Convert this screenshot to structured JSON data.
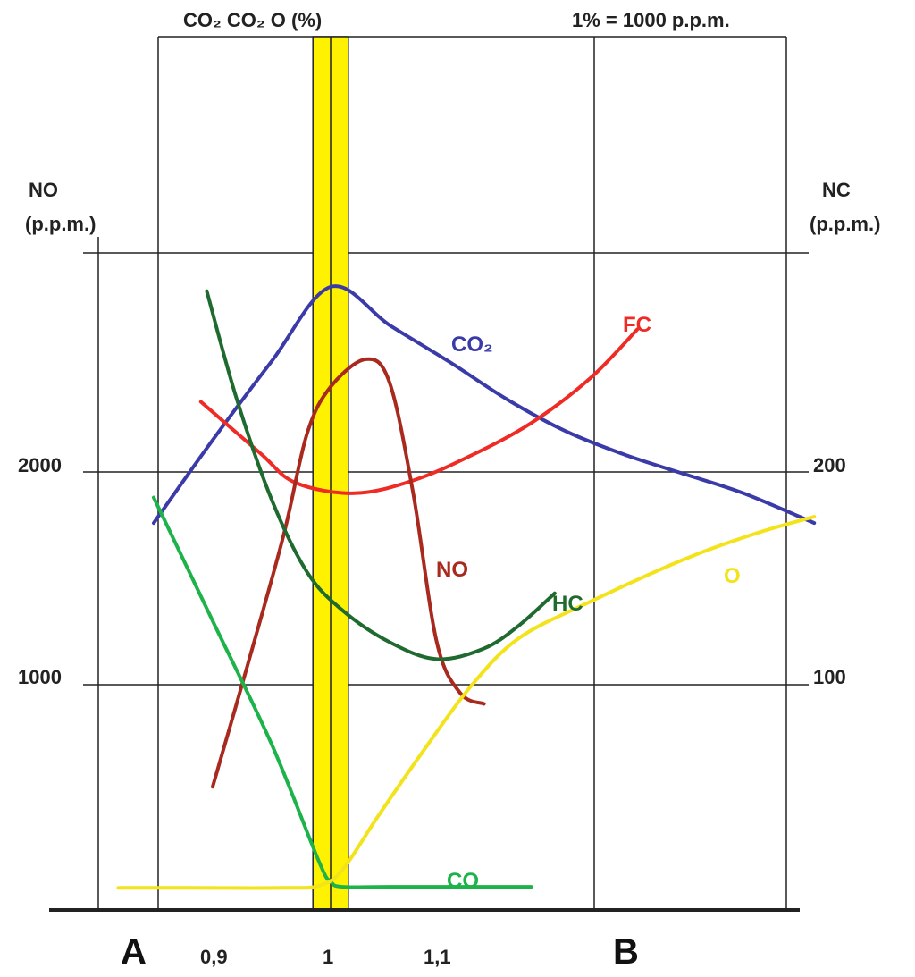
{
  "chart_data": {
    "type": "line",
    "title": "",
    "top_left_label": "CO₂ CO₂ O (%)",
    "top_right_label": "1% = 1000 p.p.m.",
    "y_left": {
      "label_line1": "NO",
      "label_line2": "(p.p.m.)",
      "ticks": [
        "2000",
        "1000"
      ]
    },
    "y_right": {
      "label_line1": "NC",
      "label_line2": "(p.p.m.)",
      "ticks": [
        "200",
        "100"
      ]
    },
    "x_ticks": [
      "0,9",
      "1",
      "1,1"
    ],
    "x_markers": [
      "A",
      "B"
    ],
    "highlight_band": {
      "from": 0.985,
      "to": 1.015,
      "color": "#fff200"
    },
    "series": [
      {
        "name": "CO₂",
        "color": "#3a3aa8",
        "points": [
          [
            0.85,
            1760
          ],
          [
            0.9,
            2150
          ],
          [
            0.95,
            2520
          ],
          [
            1.0,
            2870
          ],
          [
            1.05,
            2690
          ],
          [
            1.1,
            2520
          ],
          [
            1.15,
            2340
          ],
          [
            1.2,
            2190
          ],
          [
            1.25,
            2080
          ],
          [
            1.3,
            1990
          ],
          [
            1.35,
            1900
          ],
          [
            1.41,
            1760
          ]
        ]
      },
      {
        "name": "FC",
        "color": "#ee2b24",
        "points": [
          [
            0.89,
            2330
          ],
          [
            0.94,
            2090
          ],
          [
            0.97,
            1950
          ],
          [
            1.02,
            1900
          ],
          [
            1.07,
            1960
          ],
          [
            1.12,
            2080
          ],
          [
            1.17,
            2230
          ],
          [
            1.22,
            2440
          ],
          [
            1.26,
            2670
          ]
        ]
      },
      {
        "name": "NO",
        "color": "#a82a1e",
        "points": [
          [
            0.9,
            520
          ],
          [
            0.93,
            1100
          ],
          [
            0.96,
            1700
          ],
          [
            0.98,
            2180
          ],
          [
            1.0,
            2400
          ],
          [
            1.03,
            2530
          ],
          [
            1.05,
            2420
          ],
          [
            1.07,
            1900
          ],
          [
            1.09,
            1200
          ],
          [
            1.11,
            960
          ],
          [
            1.13,
            910
          ]
        ]
      },
      {
        "name": "HC",
        "color": "#1f6a2e",
        "points": [
          [
            0.895,
            2850
          ],
          [
            0.92,
            2350
          ],
          [
            0.95,
            1870
          ],
          [
            0.98,
            1530
          ],
          [
            1.01,
            1350
          ],
          [
            1.05,
            1200
          ],
          [
            1.09,
            1120
          ],
          [
            1.13,
            1170
          ],
          [
            1.16,
            1280
          ],
          [
            1.19,
            1430
          ]
        ]
      },
      {
        "name": "CO",
        "color": "#1db34a",
        "points": [
          [
            0.85,
            1880
          ],
          [
            0.9,
            1300
          ],
          [
            0.95,
            720
          ],
          [
            0.99,
            170
          ],
          [
            1.0,
            75
          ],
          [
            1.01,
            50
          ],
          [
            1.05,
            50
          ],
          [
            1.15,
            50
          ],
          [
            1.17,
            50
          ]
        ]
      },
      {
        "name": "O",
        "color": "#f3e31a",
        "points": [
          [
            0.82,
            45
          ],
          [
            0.88,
            45
          ],
          [
            0.96,
            45
          ],
          [
            0.99,
            55
          ],
          [
            1.01,
            130
          ],
          [
            1.04,
            380
          ],
          [
            1.08,
            700
          ],
          [
            1.12,
            1000
          ],
          [
            1.16,
            1220
          ],
          [
            1.22,
            1390
          ],
          [
            1.3,
            1590
          ],
          [
            1.36,
            1710
          ],
          [
            1.41,
            1790
          ]
        ]
      }
    ]
  }
}
